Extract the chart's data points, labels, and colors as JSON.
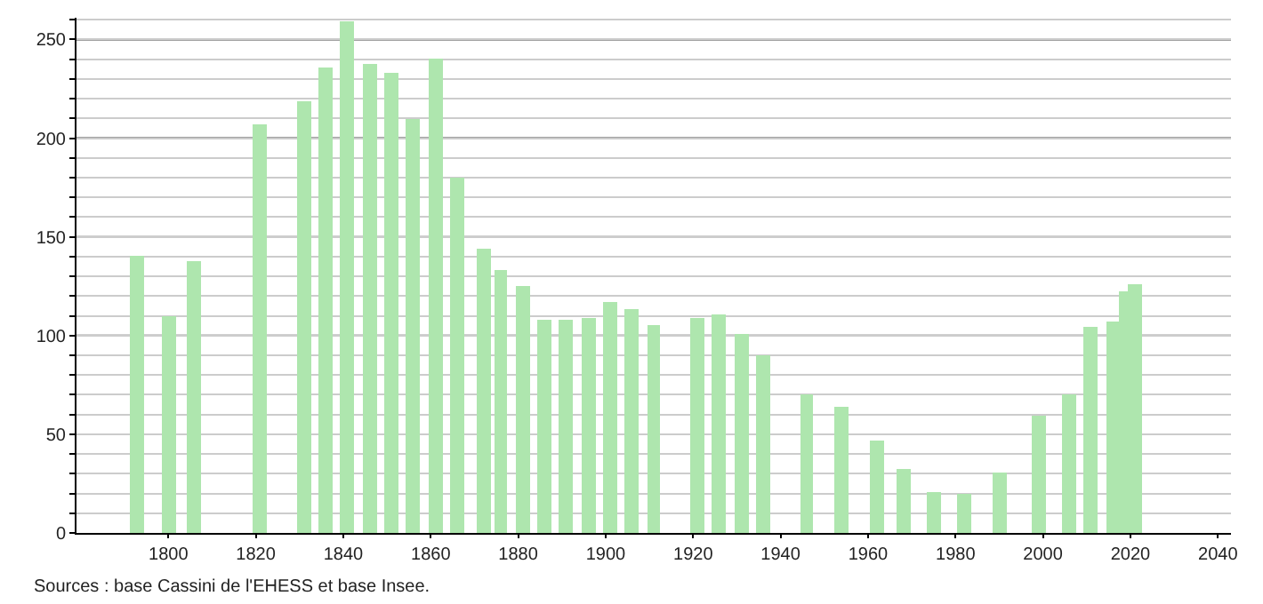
{
  "chart_data": {
    "type": "bar",
    "x": [
      1793,
      1800,
      1806,
      1821,
      1831,
      1836,
      1841,
      1846,
      1851,
      1856,
      1861,
      1866,
      1872,
      1876,
      1881,
      1886,
      1891,
      1896,
      1901,
      1906,
      1911,
      1921,
      1926,
      1931,
      1936,
      1946,
      1954,
      1962,
      1968,
      1975,
      1982,
      1990,
      1999,
      2006,
      2011,
      2016,
      2019,
      2021
    ],
    "values": [
      140,
      110,
      138,
      207,
      219,
      236,
      259,
      238,
      233,
      210,
      240,
      180,
      144,
      133,
      125,
      108,
      108,
      109,
      117,
      113,
      105,
      109,
      111,
      101,
      90,
      70,
      64,
      47,
      32,
      21,
      20,
      31,
      59,
      70,
      104,
      107,
      122,
      126
    ],
    "color": "#aee6ae",
    "xlim": [
      1779,
      2043
    ],
    "xticks": [
      1800,
      1820,
      1840,
      1860,
      1880,
      1900,
      1920,
      1940,
      1960,
      1980,
      2000,
      2020,
      2040
    ],
    "ylim": [
      0,
      261
    ],
    "yticks": [
      0,
      {
        "value": 10,
        "label": null
      },
      {
        "value": 20,
        "label": null
      },
      {
        "value": 30,
        "label": null
      },
      {
        "value": 40,
        "label": null
      },
      50,
      {
        "value": 60,
        "label": null
      },
      {
        "value": 70,
        "label": null
      },
      {
        "value": 80,
        "label": null
      },
      {
        "value": 90,
        "label": null
      },
      100,
      {
        "value": 110,
        "label": null
      },
      {
        "value": 120,
        "label": null
      },
      {
        "value": 130,
        "label": null
      },
      {
        "value": 140,
        "label": null
      },
      150,
      {
        "value": 160,
        "label": null
      },
      {
        "value": 170,
        "label": null
      },
      {
        "value": 180,
        "label": null
      },
      {
        "value": 190,
        "label": null
      },
      200,
      {
        "value": 210,
        "label": null
      },
      {
        "value": 220,
        "label": null
      },
      {
        "value": 230,
        "label": null
      },
      {
        "value": 240,
        "label": null
      },
      250,
      {
        "value": 260,
        "label": null
      }
    ],
    "grid": "y",
    "annotations": [
      "Sources : base Cassini de l'EHESS et base Insee."
    ]
  }
}
